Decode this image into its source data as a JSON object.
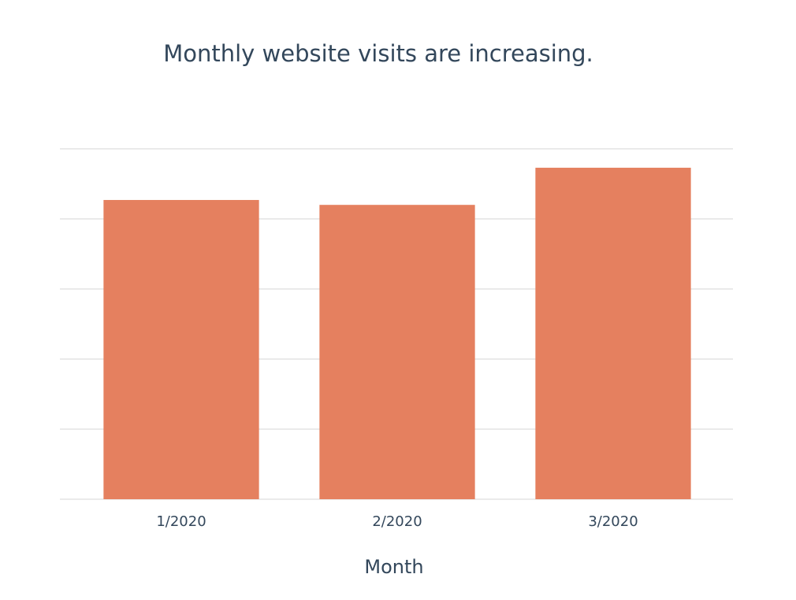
{
  "chart_data": {
    "type": "bar",
    "title": "Monthly website visits are increasing.",
    "x_label": "Month",
    "categories": [
      "1/2020",
      "2/2020",
      "3/2020"
    ],
    "values": [
      4.27,
      4.2,
      4.73
    ],
    "color": "#e5805f",
    "ylim": [
      0,
      5
    ],
    "yticks": [
      0,
      1,
      2,
      3,
      4,
      5
    ],
    "tick_labels": false,
    "grid": true
  }
}
